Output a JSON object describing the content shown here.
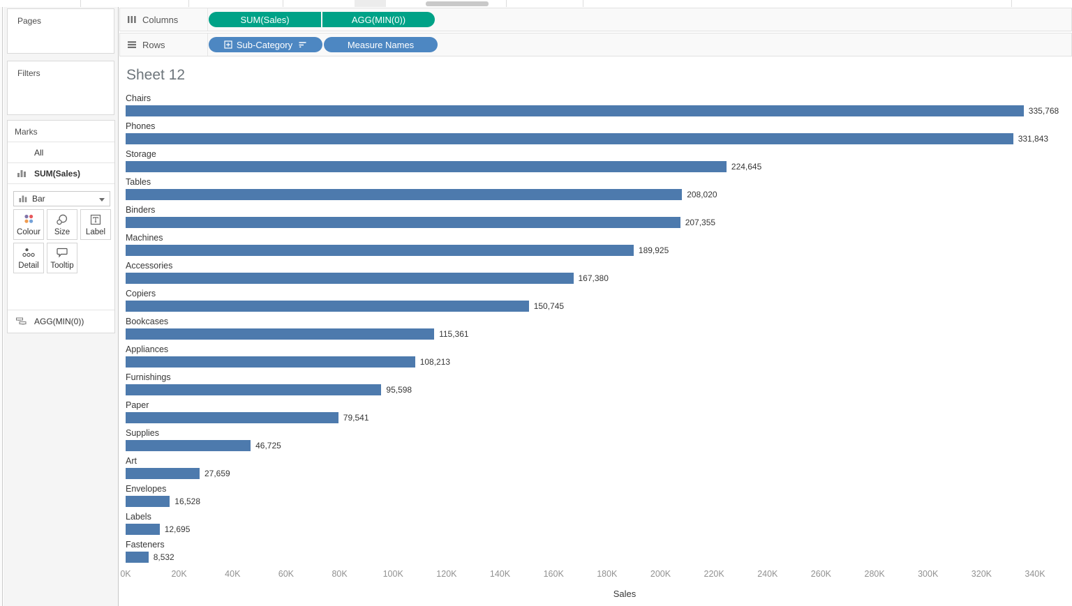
{
  "shelves": {
    "columns": {
      "label": "Columns",
      "pills": [
        {
          "label": "SUM(Sales)"
        },
        {
          "label": "AGG(MIN(0))"
        }
      ]
    },
    "rows": {
      "label": "Rows",
      "pills": [
        {
          "label": "Sub-Category",
          "icons": [
            "expand-icon",
            "sort-descending-icon"
          ]
        },
        {
          "label": "Measure Names",
          "icons": []
        }
      ]
    }
  },
  "sidebar": {
    "pages": {
      "label": "Pages"
    },
    "filters": {
      "label": "Filters"
    },
    "marks": {
      "label": "Marks",
      "tabs": {
        "all": "All",
        "sum_sales": "SUM(Sales)"
      },
      "mark_type": {
        "selected": "Bar"
      },
      "buttons": {
        "colour": "Colour",
        "size": "Size",
        "label": "Label",
        "detail": "Detail",
        "tooltip": "Tooltip"
      },
      "agg": {
        "label": "AGG(MIN(0))"
      }
    }
  },
  "chart_data": {
    "type": "bar",
    "orientation": "horizontal",
    "title": "Sheet 12",
    "xlabel": "Sales",
    "categories": [
      "Chairs",
      "Phones",
      "Storage",
      "Tables",
      "Binders",
      "Machines",
      "Accessories",
      "Copiers",
      "Bookcases",
      "Appliances",
      "Furnishings",
      "Paper",
      "Supplies",
      "Art",
      "Envelopes",
      "Labels",
      "Fasteners"
    ],
    "values": [
      335768,
      331843,
      224645,
      208020,
      207355,
      189925,
      167380,
      150745,
      115361,
      108213,
      95598,
      79541,
      46725,
      27659,
      16528,
      12695,
      8532
    ],
    "value_labels": [
      "335,768",
      "331,843",
      "224,645",
      "208,020",
      "207,355",
      "189,925",
      "167,380",
      "150,745",
      "115,361",
      "108,213",
      "95,598",
      "79,541",
      "46,725",
      "27,659",
      "16,528",
      "12,695",
      "8,532"
    ],
    "x_tick_labels": [
      "0K",
      "20K",
      "40K",
      "60K",
      "80K",
      "100K",
      "120K",
      "140K",
      "160K",
      "180K",
      "200K",
      "220K",
      "240K",
      "260K",
      "280K",
      "300K",
      "320K",
      "340K"
    ],
    "x_tick_values": [
      0,
      20000,
      40000,
      60000,
      80000,
      100000,
      120000,
      140000,
      160000,
      180000,
      200000,
      220000,
      240000,
      260000,
      280000,
      300000,
      320000,
      340000
    ],
    "xlim": [
      0,
      351500
    ],
    "grid": false,
    "legend": "none",
    "bar_color": "#4d7aad"
  },
  "colors": {
    "bar_blue": "#4d7aad",
    "pill_green": "#00a287",
    "pill_blue": "#4d87c2"
  }
}
